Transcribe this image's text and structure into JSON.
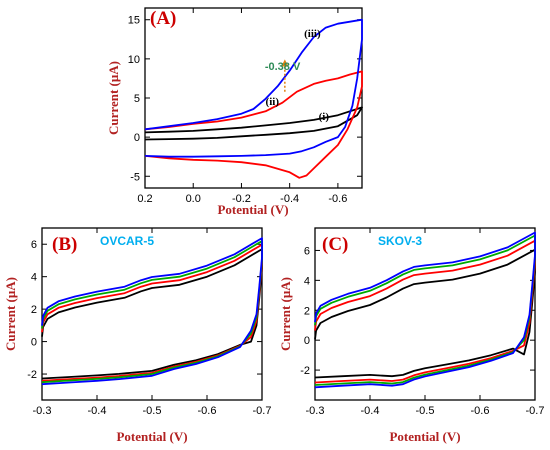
{
  "figure_axis": {
    "ylabel": "Current (μA)",
    "xlabel": "Potential (V)"
  },
  "chart_data": [
    {
      "panel": "(A)",
      "name": "",
      "type": "line",
      "xlabel": "Potential (V)",
      "ylabel": "Current (μA)",
      "xlim": [
        0.2,
        -0.7
      ],
      "ylim": [
        -6.5,
        16.5
      ],
      "xticks": [
        "0.2",
        "0.0",
        "-0.2",
        "-0.4",
        "-0.6"
      ],
      "xtick_values": [
        0.2,
        0.0,
        -0.2,
        -0.4,
        -0.6
      ],
      "yticks": [
        "-5",
        "0",
        "5",
        "10",
        "15"
      ],
      "ytick_values": [
        -5,
        0,
        5,
        10,
        15
      ],
      "annotation": {
        "text": "-0.38 V",
        "x": -0.38,
        "y": 10.5
      },
      "series": [
        {
          "name": "(i)",
          "color": "#000000",
          "label_at": [
            -0.52,
            2.2
          ],
          "points": [
            [
              0.2,
              0.6
            ],
            [
              0.1,
              0.7
            ],
            [
              0.0,
              0.8
            ],
            [
              -0.1,
              1.0
            ],
            [
              -0.2,
              1.2
            ],
            [
              -0.3,
              1.5
            ],
            [
              -0.4,
              1.8
            ],
            [
              -0.5,
              2.2
            ],
            [
              -0.6,
              2.8
            ],
            [
              -0.7,
              3.8
            ],
            [
              -0.68,
              2.8
            ],
            [
              -0.6,
              1.4
            ],
            [
              -0.5,
              0.8
            ],
            [
              -0.4,
              0.5
            ],
            [
              -0.3,
              0.3
            ],
            [
              -0.2,
              0.1
            ],
            [
              -0.1,
              -0.1
            ],
            [
              0.0,
              -0.2
            ],
            [
              0.1,
              -0.25
            ],
            [
              0.2,
              -0.3
            ]
          ]
        },
        {
          "name": "(ii)",
          "color": "#ff0000",
          "label_at": [
            -0.3,
            4.1
          ],
          "points": [
            [
              0.2,
              1.0
            ],
            [
              0.1,
              1.3
            ],
            [
              0.0,
              1.7
            ],
            [
              -0.1,
              2.0
            ],
            [
              -0.2,
              2.5
            ],
            [
              -0.3,
              3.3
            ],
            [
              -0.37,
              4.4
            ],
            [
              -0.43,
              5.8
            ],
            [
              -0.5,
              6.8
            ],
            [
              -0.55,
              7.2
            ],
            [
              -0.6,
              7.5
            ],
            [
              -0.65,
              8.0
            ],
            [
              -0.7,
              8.4
            ],
            [
              -0.7,
              6.5
            ],
            [
              -0.68,
              3.8
            ],
            [
              -0.64,
              1.0
            ],
            [
              -0.6,
              -1.0
            ],
            [
              -0.55,
              -2.5
            ],
            [
              -0.5,
              -4.0
            ],
            [
              -0.47,
              -4.9
            ],
            [
              -0.44,
              -5.2
            ],
            [
              -0.4,
              -4.5
            ],
            [
              -0.3,
              -3.6
            ],
            [
              -0.2,
              -3.2
            ],
            [
              -0.1,
              -3.0
            ],
            [
              0.0,
              -2.9
            ],
            [
              0.1,
              -2.7
            ],
            [
              0.2,
              -2.4
            ]
          ]
        },
        {
          "name": "(iii)",
          "color": "#0000ff",
          "label_at": [
            -0.46,
            12.8
          ],
          "points": [
            [
              0.2,
              1.0
            ],
            [
              0.1,
              1.4
            ],
            [
              0.0,
              1.8
            ],
            [
              -0.1,
              2.3
            ],
            [
              -0.2,
              3.0
            ],
            [
              -0.25,
              3.6
            ],
            [
              -0.3,
              4.9
            ],
            [
              -0.35,
              6.5
            ],
            [
              -0.4,
              8.5
            ],
            [
              -0.45,
              10.8
            ],
            [
              -0.5,
              12.8
            ],
            [
              -0.55,
              14.0
            ],
            [
              -0.6,
              14.5
            ],
            [
              -0.7,
              15.0
            ],
            [
              -0.7,
              12.5
            ],
            [
              -0.68,
              7.5
            ],
            [
              -0.66,
              4.0
            ],
            [
              -0.63,
              1.3
            ],
            [
              -0.6,
              0.0
            ],
            [
              -0.55,
              -0.6
            ],
            [
              -0.5,
              -1.3
            ],
            [
              -0.45,
              -1.8
            ],
            [
              -0.4,
              -2.1
            ],
            [
              -0.3,
              -2.3
            ],
            [
              -0.2,
              -2.4
            ],
            [
              -0.1,
              -2.45
            ],
            [
              0.0,
              -2.5
            ],
            [
              0.1,
              -2.5
            ],
            [
              0.2,
              -2.4
            ]
          ]
        }
      ]
    },
    {
      "panel": "(B)",
      "name": "OVCAR-5",
      "type": "line",
      "xlabel": "Potential (V)",
      "ylabel": "Current (μA)",
      "xlim": [
        -0.3,
        -0.7
      ],
      "ylim": [
        -3.6,
        7.0
      ],
      "xticks": [
        "-0.3",
        "-0.4",
        "-0.5",
        "-0.6",
        "-0.7"
      ],
      "xtick_values": [
        -0.3,
        -0.4,
        -0.5,
        -0.6,
        -0.7
      ],
      "yticks": [
        "-2",
        "0",
        "2",
        "4",
        "6"
      ],
      "ytick_values": [
        -2,
        0,
        2,
        4,
        6
      ],
      "series": [
        {
          "name": "",
          "color": "#000000",
          "offset": -0.5,
          "rscale": 0.94
        },
        {
          "name": "",
          "color": "#ff0000",
          "offset": -0.22,
          "rscale": 0.98
        },
        {
          "name": "",
          "color": "#00aa00",
          "offset": 0.0,
          "rscale": 1.0
        },
        {
          "name": "",
          "color": "#0000ff",
          "offset": 0.18,
          "rscale": 1.04
        }
      ],
      "base_shape": [
        [
          -0.3,
          0.8
        ],
        [
          -0.302,
          1.4
        ],
        [
          -0.31,
          1.9
        ],
        [
          -0.33,
          2.3
        ],
        [
          -0.36,
          2.6
        ],
        [
          -0.4,
          2.9
        ],
        [
          -0.45,
          3.2
        ],
        [
          -0.48,
          3.6
        ],
        [
          -0.5,
          3.8
        ],
        [
          -0.55,
          4.0
        ],
        [
          -0.6,
          4.5
        ],
        [
          -0.65,
          5.2
        ],
        [
          -0.7,
          6.2
        ],
        [
          -0.7,
          5.0
        ],
        [
          -0.695,
          3.2
        ],
        [
          -0.69,
          1.5
        ],
        [
          -0.68,
          0.5
        ],
        [
          -0.66,
          -0.3
        ],
        [
          -0.62,
          -0.9
        ],
        [
          -0.58,
          -1.3
        ],
        [
          -0.54,
          -1.6
        ],
        [
          -0.5,
          -2.0
        ],
        [
          -0.47,
          -2.1
        ],
        [
          -0.44,
          -2.2
        ],
        [
          -0.4,
          -2.3
        ],
        [
          -0.35,
          -2.4
        ],
        [
          -0.3,
          -2.5
        ]
      ]
    },
    {
      "panel": "(C)",
      "name": "SKOV-3",
      "type": "line",
      "xlabel": "Potential (V)",
      "ylabel": "Current (μA)",
      "xlim": [
        -0.3,
        -0.7
      ],
      "ylim": [
        -4.0,
        7.5
      ],
      "xticks": [
        "-0.3",
        "-0.4",
        "-0.5",
        "-0.6",
        "-0.7"
      ],
      "xtick_values": [
        -0.3,
        -0.4,
        -0.5,
        -0.6,
        -0.7
      ],
      "yticks": [
        "-2",
        "0",
        "2",
        "4",
        "6"
      ],
      "ytick_values": [
        -2,
        0,
        2,
        4,
        6
      ],
      "series": [
        {
          "name": "",
          "color": "#000000",
          "offset": -0.95,
          "rscale": 0.88
        },
        {
          "name": "",
          "color": "#ff0000",
          "offset": -0.35,
          "rscale": 0.96
        },
        {
          "name": "",
          "color": "#00aa00",
          "offset": 0.0,
          "rscale": 1.0
        },
        {
          "name": "",
          "color": "#0000ff",
          "offset": 0.2,
          "rscale": 1.04
        }
      ],
      "base_shape": [
        [
          -0.3,
          1.0
        ],
        [
          -0.302,
          1.6
        ],
        [
          -0.31,
          2.1
        ],
        [
          -0.33,
          2.5
        ],
        [
          -0.36,
          2.9
        ],
        [
          -0.4,
          3.3
        ],
        [
          -0.43,
          3.8
        ],
        [
          -0.46,
          4.4
        ],
        [
          -0.48,
          4.7
        ],
        [
          -0.5,
          4.8
        ],
        [
          -0.55,
          5.0
        ],
        [
          -0.6,
          5.4
        ],
        [
          -0.65,
          6.0
        ],
        [
          -0.7,
          7.0
        ],
        [
          -0.7,
          5.5
        ],
        [
          -0.695,
          3.5
        ],
        [
          -0.69,
          1.5
        ],
        [
          -0.68,
          0.0
        ],
        [
          -0.66,
          -0.8
        ],
        [
          -0.62,
          -1.3
        ],
        [
          -0.58,
          -1.7
        ],
        [
          -0.54,
          -2.0
        ],
        [
          -0.5,
          -2.3
        ],
        [
          -0.48,
          -2.5
        ],
        [
          -0.46,
          -2.8
        ],
        [
          -0.44,
          -2.9
        ],
        [
          -0.4,
          -2.8
        ],
        [
          -0.35,
          -2.9
        ],
        [
          -0.3,
          -3.0
        ]
      ]
    }
  ]
}
